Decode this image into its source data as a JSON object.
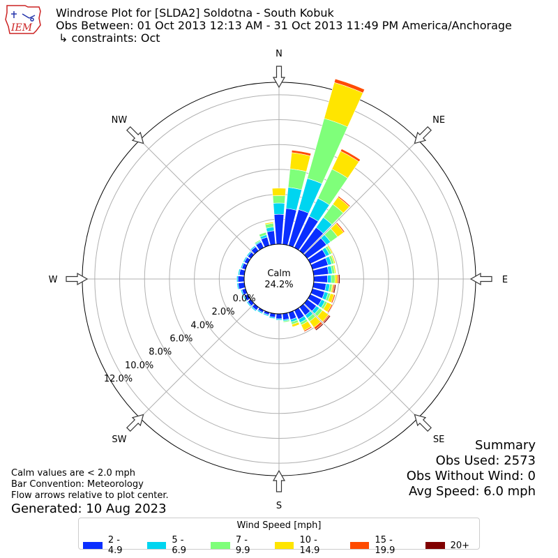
{
  "header": {
    "title": "Windrose Plot for [SLDA2] Soldotna - South Kobuk",
    "subtitle": "Obs Between: 01 Oct 2013 12:13 AM - 31 Oct 2013 11:49 PM America/Anchorage",
    "constraints": "↳ constraints: Oct",
    "logo_text": "IEM"
  },
  "summary": {
    "heading": "Summary",
    "obs_used": "Obs Used: 2573",
    "obs_without_wind": "Obs Without Wind: 0",
    "avg_speed": "Avg Speed: 6.0 mph"
  },
  "notes": {
    "calm_note": "Calm values are < 2.0 mph",
    "bar_convention": "Bar Convention: Meteorology",
    "flow_note": "Flow arrows relative to plot center.",
    "generated": "Generated: 10 Aug 2023"
  },
  "legend": {
    "title": "Wind Speed [mph]",
    "items": [
      {
        "label": "2 - 4.9",
        "color": "#0a2eff"
      },
      {
        "label": "5 - 6.9",
        "color": "#00d5f0"
      },
      {
        "label": "7 - 9.9",
        "color": "#7fff7a"
      },
      {
        "label": "10 - 14.9",
        "color": "#ffe500"
      },
      {
        "label": "15 - 19.9",
        "color": "#ff4b00"
      },
      {
        "label": "20+",
        "color": "#800000"
      }
    ]
  },
  "chart_data": {
    "type": "windrose",
    "title": "Windrose Plot for [SLDA2] Soldotna - South Kobuk",
    "calm": {
      "label": "Calm",
      "value_text": "24.2%",
      "value": 24.2
    },
    "radial_ticks": [
      "0.0%",
      "2.0%",
      "4.0%",
      "6.0%",
      "8.0%",
      "10.0%",
      "12.0%"
    ],
    "radial_tick_values": [
      0,
      2,
      4,
      6,
      8,
      10,
      12
    ],
    "rmax": 13.0,
    "directions": [
      {
        "label": "N",
        "deg": 0
      },
      {
        "label": "NE",
        "deg": 45
      },
      {
        "label": "E",
        "deg": 90
      },
      {
        "label": "SE",
        "deg": 135
      },
      {
        "label": "S",
        "deg": 180
      },
      {
        "label": "SW",
        "deg": 225
      },
      {
        "label": "W",
        "deg": 270
      },
      {
        "label": "NW",
        "deg": 315
      }
    ],
    "bins_deg": [
      0,
      10,
      20,
      30,
      40,
      50,
      60,
      70,
      80,
      90,
      100,
      110,
      120,
      130,
      140,
      150,
      160,
      170,
      180,
      190,
      200,
      210,
      220,
      230,
      240,
      250,
      260,
      270,
      280,
      290,
      300,
      310,
      320,
      330,
      340,
      350
    ],
    "series": [
      {
        "name": "2 - 4.9",
        "color": "#0a2eff",
        "values": [
          2.4,
          2.9,
          3.0,
          2.8,
          2.3,
          1.9,
          1.4,
          1.3,
          1.2,
          1.1,
          1.0,
          1.0,
          1.0,
          0.9,
          0.8,
          0.8,
          0.6,
          0.5,
          0.4,
          0.3,
          0.2,
          0.2,
          0.3,
          0.3,
          0.3,
          0.3,
          0.5,
          0.5,
          0.4,
          0.3,
          0.3,
          0.3,
          0.4,
          0.5,
          0.7,
          1.1
        ]
      },
      {
        "name": "5 - 6.9",
        "color": "#00d5f0",
        "values": [
          0.9,
          1.7,
          2.6,
          1.6,
          1.0,
          0.4,
          0.3,
          0.3,
          0.3,
          0.3,
          0.3,
          0.3,
          0.3,
          0.3,
          0.3,
          0.3,
          0.2,
          0.1,
          0.1,
          0.1,
          0.1,
          0.1,
          0.1,
          0.1,
          0.1,
          0.1,
          0.1,
          0.1,
          0.1,
          0.1,
          0.1,
          0.1,
          0.1,
          0.1,
          0.2,
          0.3
        ]
      },
      {
        "name": "7 - 9.9",
        "color": "#7fff7a",
        "values": [
          0.6,
          1.5,
          5.0,
          2.6,
          1.3,
          0.7,
          0.2,
          0.2,
          0.2,
          0.3,
          0.2,
          0.2,
          0.2,
          0.3,
          0.3,
          0.2,
          0.2,
          0.1,
          0.0,
          0.0,
          0.0,
          0.0,
          0.0,
          0.0,
          0.0,
          0.0,
          0.0,
          0.0,
          0.0,
          0.0,
          0.0,
          0.0,
          0.0,
          0.1,
          0.2,
          0.3
        ]
      },
      {
        "name": "10 - 14.9",
        "color": "#ffe500",
        "values": [
          0.6,
          1.3,
          3.0,
          1.6,
          0.7,
          0.6,
          0.1,
          0.1,
          0.1,
          0.2,
          0.1,
          0.3,
          0.4,
          0.6,
          0.6,
          0.5,
          0.2,
          0.0,
          0.0,
          0.0,
          0.0,
          0.0,
          0.0,
          0.0,
          0.0,
          0.0,
          0.0,
          0.0,
          0.0,
          0.0,
          0.0,
          0.0,
          0.0,
          0.0,
          0.0,
          0.1
        ]
      },
      {
        "name": "15 - 19.9",
        "color": "#ff4b00",
        "values": [
          0.0,
          0.2,
          0.3,
          0.2,
          0.1,
          0.1,
          0.0,
          0.0,
          0.0,
          0.1,
          0.1,
          0.1,
          0.1,
          0.1,
          0.2,
          0.1,
          0.0,
          0.0,
          0.0,
          0.0,
          0.0,
          0.0,
          0.0,
          0.0,
          0.0,
          0.0,
          0.0,
          0.0,
          0.0,
          0.0,
          0.0,
          0.0,
          0.0,
          0.0,
          0.0,
          0.0
        ]
      },
      {
        "name": "20+",
        "color": "#800000",
        "values": [
          0.0,
          0.0,
          0.0,
          0.0,
          0.0,
          0.0,
          0.0,
          0.0,
          0.0,
          0.1,
          0.1,
          0.0,
          0.0,
          0.1,
          0.1,
          0.0,
          0.0,
          0.0,
          0.0,
          0.0,
          0.0,
          0.0,
          0.0,
          0.0,
          0.0,
          0.0,
          0.0,
          0.0,
          0.0,
          0.0,
          0.0,
          0.0,
          0.0,
          0.0,
          0.0,
          0.0
        ]
      }
    ]
  }
}
